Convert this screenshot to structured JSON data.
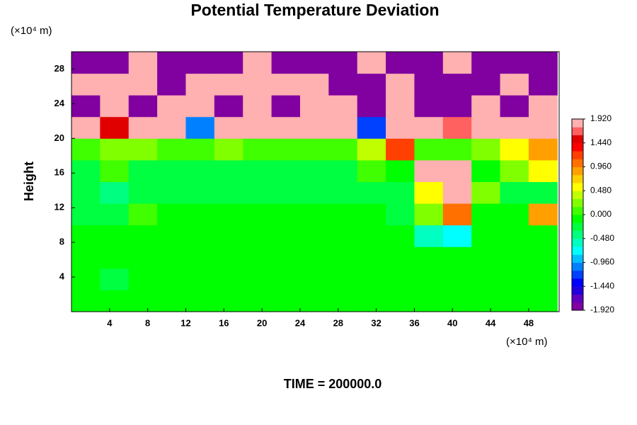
{
  "chart_data": {
    "type": "heatmap",
    "title": "Potential Temperature Deviation",
    "y_label": "Height",
    "x_unit": "(×10⁴ m)",
    "y_unit": "(×10⁴ m)",
    "annotation": "TIME = 200000.0",
    "xlim": [
      0,
      51.2
    ],
    "ylim": [
      0,
      30
    ],
    "xticks": [
      4,
      8,
      12,
      16,
      20,
      24,
      28,
      32,
      36,
      40,
      44,
      48
    ],
    "yticks": [
      4,
      8,
      12,
      16,
      20,
      24,
      28
    ],
    "x": [
      1.5,
      4.5,
      7.5,
      10.5,
      13.5,
      16.5,
      19.5,
      22.5,
      25.5,
      28.5,
      31.5,
      34.5,
      37.5,
      40.5,
      43.5,
      46.5,
      49.5
    ],
    "y": [
      1.25,
      3.75,
      6.25,
      8.75,
      11.25,
      13.75,
      16.25,
      18.75,
      21.25,
      23.75,
      26.25,
      28.75
    ],
    "z": [
      [
        -0.05,
        -0.05,
        -0.05,
        -0.05,
        -0.05,
        -0.05,
        -0.05,
        -0.05,
        -0.05,
        -0.05,
        -0.05,
        -0.05,
        -0.05,
        -0.05,
        -0.05,
        -0.05,
        -0.05
      ],
      [
        -0.05,
        -0.2,
        -0.05,
        -0.05,
        -0.05,
        -0.05,
        -0.05,
        -0.05,
        -0.05,
        -0.05,
        -0.05,
        -0.05,
        -0.05,
        -0.05,
        -0.05,
        -0.05,
        -0.05
      ],
      [
        -0.05,
        -0.05,
        -0.05,
        -0.05,
        -0.05,
        -0.05,
        -0.05,
        -0.05,
        -0.05,
        -0.05,
        -0.05,
        -0.05,
        -0.05,
        -0.05,
        -0.05,
        -0.05,
        -0.05
      ],
      [
        -0.1,
        -0.05,
        -0.05,
        -0.05,
        -0.05,
        -0.05,
        -0.05,
        -0.05,
        -0.05,
        -0.05,
        -0.05,
        -0.1,
        -0.6,
        -0.7,
        -0.1,
        -0.05,
        -0.05
      ],
      [
        -0.2,
        -0.3,
        0.1,
        -0.1,
        -0.1,
        -0.1,
        -0.1,
        -0.1,
        -0.1,
        -0.1,
        -0.1,
        -0.2,
        0.2,
        1.0,
        -0.1,
        -0.1,
        0.9
      ],
      [
        -0.3,
        -0.4,
        -0.3,
        -0.3,
        -0.3,
        -0.3,
        -0.3,
        -0.3,
        -0.3,
        -0.3,
        -0.2,
        -0.2,
        0.5,
        2.2,
        0.3,
        -0.3,
        -0.3
      ],
      [
        -0.3,
        0.1,
        -0.2,
        -0.3,
        -0.2,
        -0.3,
        -0.2,
        -0.2,
        -0.3,
        -0.2,
        0.1,
        -0.1,
        2.0,
        2.2,
        -0.1,
        0.2,
        0.6
      ],
      [
        0.1,
        0.2,
        0.3,
        0.0,
        0.1,
        0.2,
        0.0,
        0.1,
        0.0,
        0.1,
        0.4,
        1.2,
        0.1,
        0.0,
        0.2,
        0.6,
        0.8
      ],
      [
        2.2,
        1.5,
        2.2,
        2.2,
        -1.0,
        2.2,
        2.2,
        1.8,
        2.2,
        2.2,
        -1.2,
        2.2,
        2.2,
        1.6,
        2.2,
        2.2,
        2.2
      ],
      [
        -2.2,
        2.2,
        -2.2,
        2.2,
        2.2,
        -2.2,
        2.2,
        -2.2,
        2.2,
        2.2,
        -2.2,
        2.2,
        -2.2,
        -2.2,
        2.2,
        -2.2,
        2.2
      ],
      [
        2.2,
        2.2,
        2.2,
        -2.2,
        2.2,
        2.2,
        2.2,
        2.2,
        2.2,
        -2.2,
        -2.2,
        2.2,
        -2.2,
        -2.2,
        -2.2,
        2.2,
        -2.2
      ],
      [
        -2.2,
        -2.2,
        2.2,
        -2.2,
        -2.2,
        -2.2,
        2.2,
        -2.2,
        -2.2,
        -2.2,
        2.2,
        -2.2,
        -2.2,
        2.2,
        -2.2,
        -2.2,
        -2.2
      ]
    ],
    "clim": [
      -1.92,
      1.92
    ],
    "colors": [
      "#8000a0",
      "#6000c0",
      "#2000e0",
      "#0000ff",
      "#0040ff",
      "#0080ff",
      "#00c0ff",
      "#00ffff",
      "#00ffc0",
      "#00ff80",
      "#00ff40",
      "#00ff00",
      "#40ff00",
      "#80ff00",
      "#c0ff00",
      "#ffff00",
      "#ffd000",
      "#ffa000",
      "#ff7000",
      "#ff4000",
      "#ff0000",
      "#e00000",
      "#ff6060",
      "#ffb0b0"
    ],
    "cticks": [
      {
        "value": -1.92,
        "label": "-1.920"
      },
      {
        "value": -1.44,
        "label": "-1.440"
      },
      {
        "value": -0.96,
        "label": "-0.960"
      },
      {
        "value": -0.48,
        "label": "-0.480"
      },
      {
        "value": 0,
        "label": "0.000"
      },
      {
        "value": 0.48,
        "label": "0.480"
      },
      {
        "value": 0.96,
        "label": "0.960"
      },
      {
        "value": 1.44,
        "label": "1.440"
      },
      {
        "value": 1.92,
        "label": "1.920"
      }
    ]
  }
}
